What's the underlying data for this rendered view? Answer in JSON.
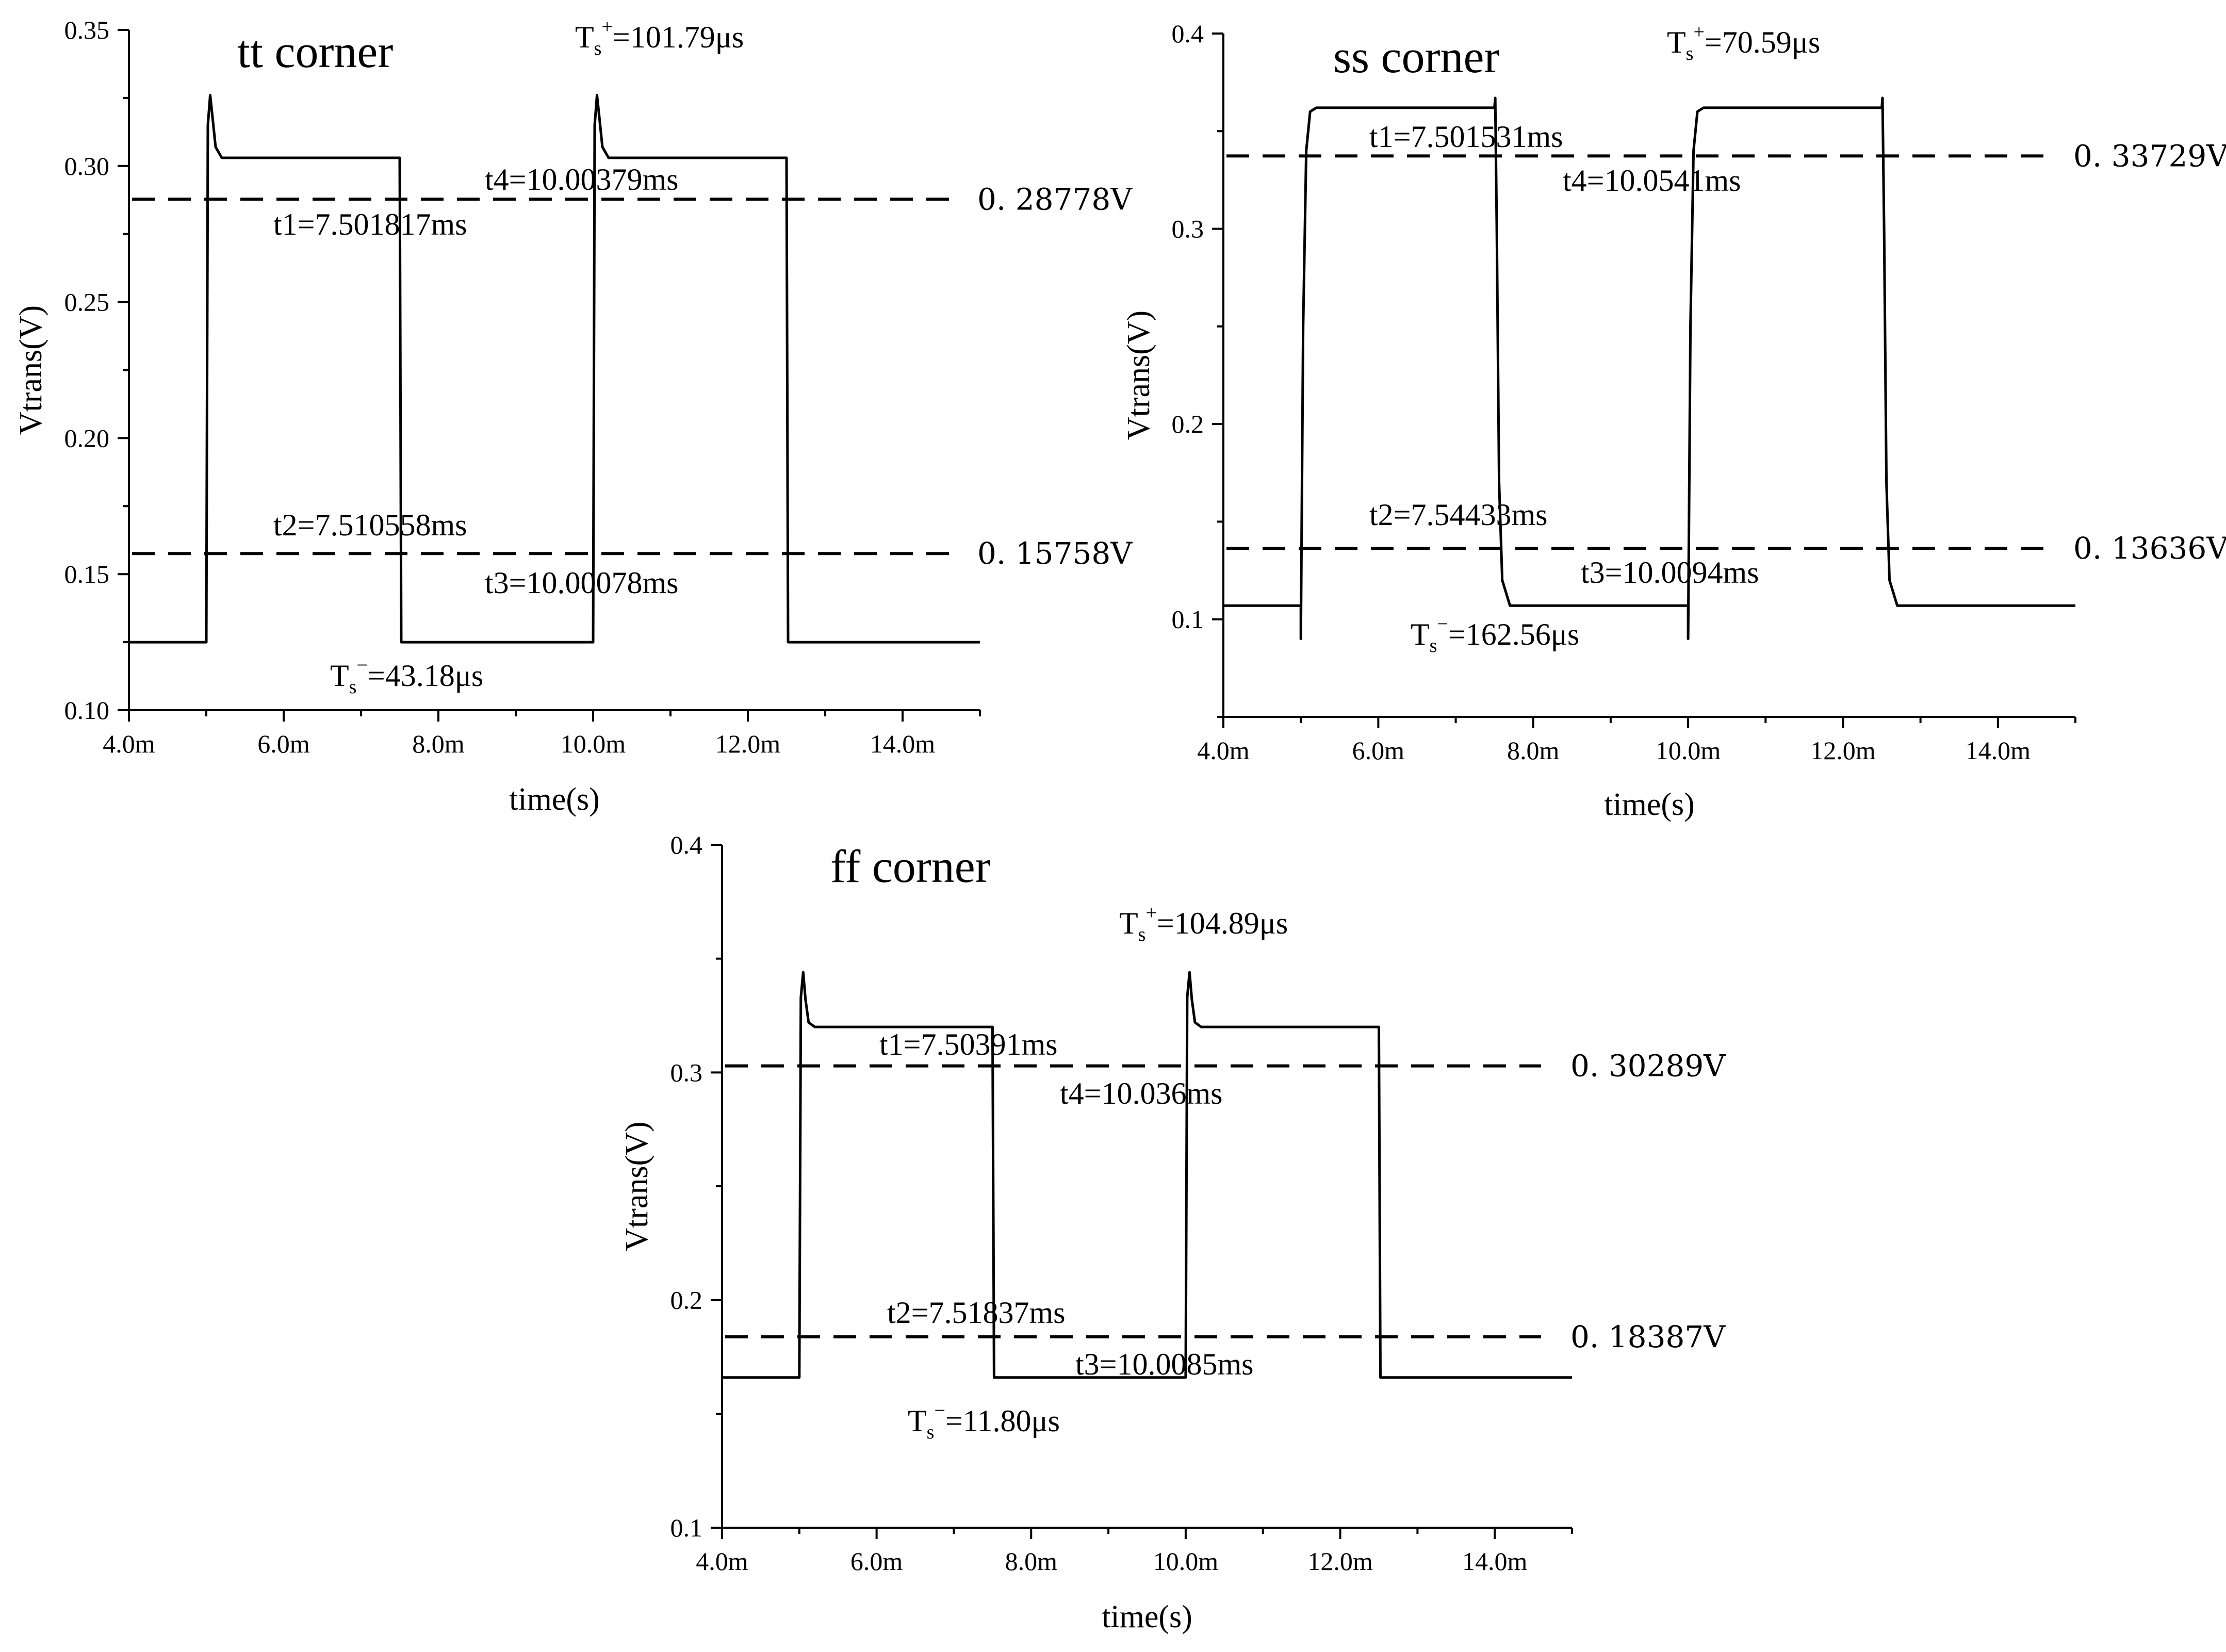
{
  "chart_data": [
    {
      "type": "line",
      "title": "tt corner",
      "xlabel": "time(s)",
      "ylabel": "Vtrans(V)",
      "xlim": [
        4.0,
        15.0
      ],
      "ylim": [
        0.1,
        0.35
      ],
      "xticks": [
        4.0,
        6.0,
        8.0,
        10.0,
        12.0,
        14.0
      ],
      "xtick_labels": [
        "4.0m",
        "6.0m",
        "8.0m",
        "10.0m",
        "12.0m",
        "14.0m"
      ],
      "yticks": [
        0.1,
        0.15,
        0.2,
        0.25,
        0.3,
        0.35
      ],
      "ytick_labels": [
        "0.10",
        "0.15",
        "0.20",
        "0.25",
        "0.30",
        "0.35"
      ],
      "x_unit": "ms",
      "series": [
        {
          "name": "Vtrans",
          "x": [
            4.0,
            5.0,
            5.02,
            5.05,
            5.08,
            5.12,
            5.2,
            7.5,
            7.52,
            10.0,
            10.02,
            10.05,
            10.08,
            10.12,
            10.2,
            12.5,
            12.52,
            15.0
          ],
          "y": [
            0.125,
            0.125,
            0.315,
            0.326,
            0.318,
            0.307,
            0.303,
            0.303,
            0.125,
            0.125,
            0.315,
            0.326,
            0.318,
            0.307,
            0.303,
            0.303,
            0.125,
            0.125
          ]
        }
      ],
      "thresholds": [
        {
          "value": 0.28778,
          "label": "0. 28778V"
        },
        {
          "value": 0.15758,
          "label": "0. 15758V"
        }
      ],
      "annotations": [
        {
          "text": "t1=7.501817ms"
        },
        {
          "text": "t4=10.00379ms"
        },
        {
          "text": "t2=7.510558ms"
        },
        {
          "text": "t3=10.00078ms"
        },
        {
          "main": "T",
          "sub": "s",
          "sup": "+",
          "value": "=101.79μs"
        },
        {
          "main": "T",
          "sub": "s",
          "sup": "−",
          "value": "=43.18μs"
        }
      ]
    },
    {
      "type": "line",
      "title": "ss corner",
      "xlabel": "time(s)",
      "ylabel": "Vtrans(V)",
      "xlim": [
        4.0,
        15.0
      ],
      "ylim": [
        0.05,
        0.4
      ],
      "xticks": [
        4.0,
        6.0,
        8.0,
        10.0,
        12.0,
        14.0
      ],
      "xtick_labels": [
        "4.0m",
        "6.0m",
        "8.0m",
        "10.0m",
        "12.0m",
        "14.0m"
      ],
      "yticks": [
        0.1,
        0.2,
        0.3,
        0.4
      ],
      "ytick_labels": [
        "0.1",
        "0.2",
        "0.3",
        "0.4"
      ],
      "x_unit": "ms",
      "series": [
        {
          "name": "Vtrans",
          "x": [
            4.0,
            5.0,
            5.0,
            5.03,
            5.07,
            5.12,
            5.2,
            7.5,
            7.51,
            7.53,
            7.56,
            7.6,
            7.7,
            10.0,
            10.0,
            10.03,
            10.07,
            10.12,
            10.2,
            12.5,
            12.51,
            12.53,
            12.56,
            12.6,
            12.7,
            15.0
          ],
          "y": [
            0.107,
            0.107,
            0.09,
            0.25,
            0.34,
            0.36,
            0.362,
            0.362,
            0.367,
            0.3,
            0.17,
            0.12,
            0.107,
            0.107,
            0.09,
            0.25,
            0.34,
            0.36,
            0.362,
            0.362,
            0.367,
            0.3,
            0.17,
            0.12,
            0.107,
            0.107
          ]
        }
      ],
      "thresholds": [
        {
          "value": 0.33729,
          "label": "0. 33729V"
        },
        {
          "value": 0.13636,
          "label": "0. 13636V"
        }
      ],
      "annotations": [
        {
          "text": "t1=7.501531ms"
        },
        {
          "text": "t4=10.0541ms"
        },
        {
          "text": "t2=7.54433ms"
        },
        {
          "text": "t3=10.0094ms"
        },
        {
          "main": "T",
          "sub": "s",
          "sup": "+",
          "value": "=70.59μs"
        },
        {
          "main": "T",
          "sub": "s",
          "sup": "−",
          "value": "=162.56μs"
        }
      ]
    },
    {
      "type": "line",
      "title": "ff corner",
      "xlabel": "time(s)",
      "ylabel": "Vtrans(V)",
      "xlim": [
        4.0,
        15.0
      ],
      "ylim": [
        0.1,
        0.4
      ],
      "xticks": [
        4.0,
        6.0,
        8.0,
        10.0,
        12.0,
        14.0
      ],
      "xtick_labels": [
        "4.0m",
        "6.0m",
        "8.0m",
        "10.0m",
        "12.0m",
        "14.0m"
      ],
      "yticks": [
        0.1,
        0.2,
        0.3,
        0.4
      ],
      "ytick_labels": [
        "0.1",
        "0.2",
        "0.3",
        "0.4"
      ],
      "x_unit": "ms",
      "series": [
        {
          "name": "Vtrans",
          "x": [
            4.0,
            5.0,
            5.02,
            5.05,
            5.08,
            5.12,
            5.2,
            7.5,
            7.52,
            10.0,
            10.02,
            10.05,
            10.08,
            10.12,
            10.2,
            12.5,
            12.52,
            15.0
          ],
          "y": [
            0.166,
            0.166,
            0.333,
            0.344,
            0.332,
            0.322,
            0.32,
            0.32,
            0.166,
            0.166,
            0.333,
            0.344,
            0.332,
            0.322,
            0.32,
            0.32,
            0.166,
            0.166
          ]
        }
      ],
      "thresholds": [
        {
          "value": 0.30289,
          "label": "0. 30289V"
        },
        {
          "value": 0.18387,
          "label": "0. 18387V"
        }
      ],
      "annotations": [
        {
          "main": "T",
          "sub": "s",
          "sup": "+",
          "value": "=104.89μs"
        },
        {
          "text": "t1=7.50391ms"
        },
        {
          "text": "t4=10.036ms"
        },
        {
          "text": "t2=7.51837ms"
        },
        {
          "text": "t3=10.0085ms"
        },
        {
          "main": "T",
          "sub": "s",
          "sup": "−",
          "value": "=11.80μs"
        }
      ]
    }
  ]
}
